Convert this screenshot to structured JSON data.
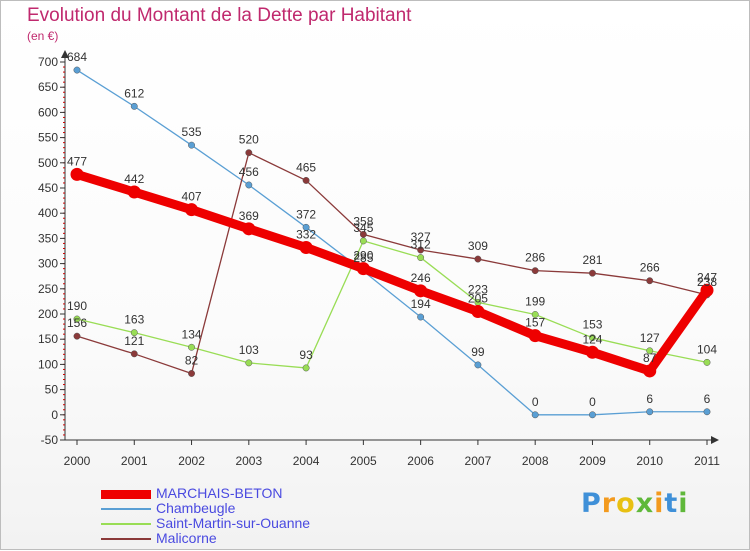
{
  "chart_data": {
    "type": "line",
    "title": "Evolution du Montant de la Dette par Habitant",
    "unit_label": "(en €)",
    "x": [
      "2000",
      "2001",
      "2002",
      "2003",
      "2004",
      "2005",
      "2006",
      "2007",
      "2008",
      "2009",
      "2010",
      "2011"
    ],
    "ylim": [
      -50,
      700
    ],
    "yticks": [
      -50,
      0,
      50,
      100,
      150,
      200,
      250,
      300,
      350,
      400,
      450,
      500,
      550,
      600,
      650,
      700
    ],
    "grid": false,
    "legend_position": "bottom-left",
    "series": [
      {
        "name": "MARCHAIS-BETON",
        "color": "#ee0000",
        "values": [
          477,
          442,
          407,
          369,
          332,
          290,
          246,
          205,
          157,
          124,
          87,
          247
        ]
      },
      {
        "name": "Chambeugle",
        "color": "#5a9fd4",
        "values": [
          684,
          612,
          535,
          456,
          372,
          285,
          194,
          99,
          0,
          0,
          6,
          6
        ]
      },
      {
        "name": "Saint-Martin-sur-Ouanne",
        "color": "#99dd55",
        "values": [
          190,
          163,
          134,
          103,
          93,
          345,
          312,
          223,
          199,
          153,
          127,
          104
        ]
      },
      {
        "name": "Malicorne",
        "color": "#8b3a3a",
        "values": [
          156,
          121,
          82,
          520,
          465,
          358,
          327,
          309,
          286,
          281,
          266,
          238
        ]
      }
    ]
  },
  "brand": {
    "letters": [
      {
        "ch": "P",
        "color": "#3f90d8"
      },
      {
        "ch": "r",
        "color": "#f39a1e"
      },
      {
        "ch": "o",
        "color": "#e8c012"
      },
      {
        "ch": "x",
        "color": "#5fb83a"
      },
      {
        "ch": "i",
        "color": "#f39a1e"
      },
      {
        "ch": "t",
        "color": "#3f90d8"
      },
      {
        "ch": "i",
        "color": "#5fb83a"
      }
    ]
  }
}
